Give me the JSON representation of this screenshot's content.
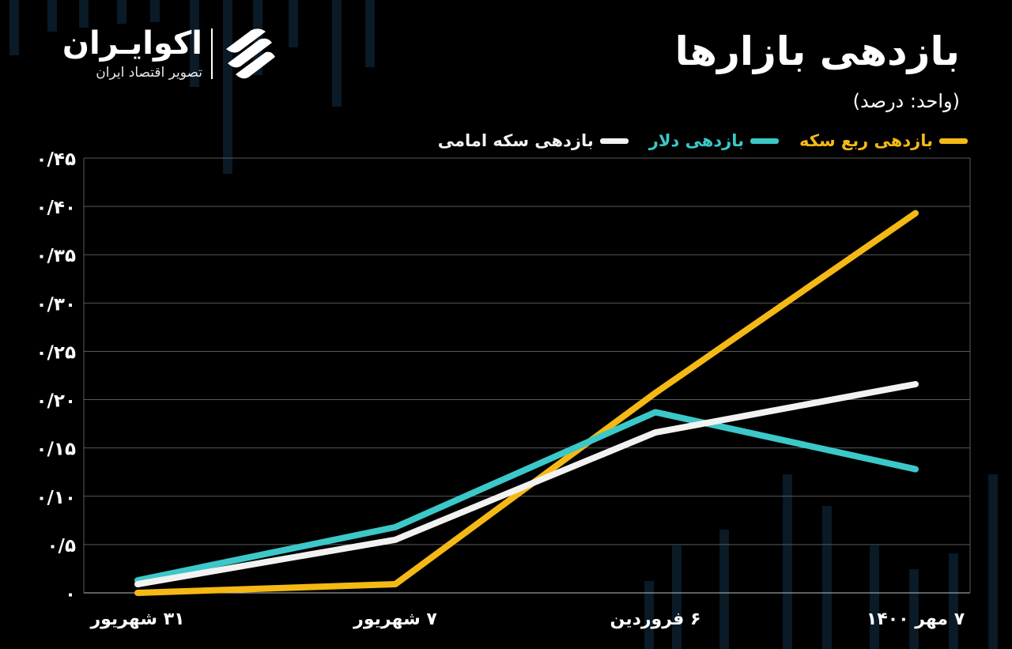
{
  "header": {
    "title": "بازدهی بازارها",
    "unit": "(واحد: درصد)"
  },
  "brand": {
    "name": "اکوایـران",
    "tagline": "تصویر اقتصاد ایران",
    "icon": "ekoiran-logo-icon"
  },
  "colors": {
    "background": "#000000",
    "quarter_coin": "#F5B915",
    "dollar": "#3CC8C8",
    "emami_coin": "#F2F2F2",
    "grid": "#5a5a5a"
  },
  "chart_data": {
    "type": "line",
    "categories": [
      "۳۱ شهریور",
      "۷ شهریور",
      "۶ فروردین",
      "۷ مهر ۱۴۰۰"
    ],
    "series": [
      {
        "name": "بازدهی ربع سکه",
        "color": "#F5B915",
        "values": [
          0.0,
          0.009,
          0.207,
          0.393
        ]
      },
      {
        "name": "بازدهی دلار",
        "color": "#3CC8C8",
        "values": [
          0.013,
          0.068,
          0.187,
          0.128
        ]
      },
      {
        "name": "بازدهی سکه امامی",
        "color": "#F2F2F2",
        "values": [
          0.009,
          0.055,
          0.166,
          0.216
        ]
      }
    ],
    "ylim": [
      0,
      0.45
    ],
    "yticks": [
      0,
      0.05,
      0.1,
      0.15,
      0.2,
      0.25,
      0.3,
      0.35,
      0.4,
      0.45
    ],
    "ytick_labels": [
      "۰",
      "۰/۵",
      "۰/۱۰",
      "۰/۱۵",
      "۰/۲۰",
      "۰/۲۵",
      "۰/۳۰",
      "۰/۳۵",
      "۰/۴۰",
      "۰/۴۵"
    ],
    "grid": true,
    "legend_position": "top-right",
    "title": "بازدهی بازارها",
    "xlabel": "",
    "ylabel": ""
  }
}
